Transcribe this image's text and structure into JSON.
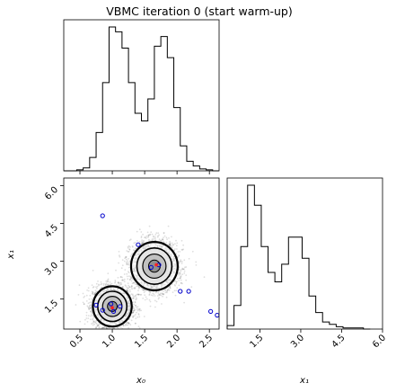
{
  "chart_data": [
    {
      "type": "histogram",
      "panel": "marginal-x0",
      "title": "VBMC iteration 0 (start warm-up)",
      "xlim": [
        0.25,
        2.65
      ],
      "bin_edges": [
        0.25,
        0.35,
        0.45,
        0.55,
        0.65,
        0.75,
        0.85,
        0.95,
        1.05,
        1.15,
        1.25,
        1.35,
        1.45,
        1.55,
        1.65,
        1.75,
        1.85,
        1.95,
        2.05,
        2.15,
        2.25,
        2.35,
        2.45,
        2.55,
        2.65
      ],
      "counts": [
        0,
        0,
        1,
        3,
        14,
        40,
        92,
        150,
        145,
        128,
        92,
        60,
        52,
        75,
        130,
        140,
        118,
        66,
        26,
        10,
        5,
        2,
        1,
        0
      ]
    },
    {
      "type": "scatter-contour",
      "panel": "joint-x0-x1",
      "xlabel": "x₀",
      "ylabel": "x₁",
      "xlim": [
        0.25,
        2.65
      ],
      "ylim": [
        0.3,
        6.3
      ],
      "xticks": [
        "0.5",
        "1.0",
        "1.5",
        "2.0",
        "2.5"
      ],
      "yticks": [
        "1.5",
        "3.0",
        "4.5",
        "6.0"
      ],
      "modes": [
        {
          "cx": 1.0,
          "cy": 1.2,
          "sx": 0.15,
          "sy": 0.4
        },
        {
          "cx": 1.65,
          "cy": 2.8,
          "sx": 0.18,
          "sy": 0.48
        }
      ],
      "training_points": [
        {
          "x": 0.85,
          "y": 4.8
        },
        {
          "x": 0.75,
          "y": 1.25
        },
        {
          "x": 0.85,
          "y": 1.05
        },
        {
          "x": 0.98,
          "y": 1.3
        },
        {
          "x": 1.02,
          "y": 1.0
        },
        {
          "x": 1.12,
          "y": 1.2
        },
        {
          "x": 1.4,
          "y": 3.65
        },
        {
          "x": 1.6,
          "y": 2.75
        },
        {
          "x": 1.72,
          "y": 2.85
        },
        {
          "x": 2.05,
          "y": 1.8
        },
        {
          "x": 2.18,
          "y": 1.8
        },
        {
          "x": 2.52,
          "y": 1.0
        },
        {
          "x": 2.62,
          "y": 0.85
        }
      ],
      "highlight_points": [
        {
          "x": 1.0,
          "y": 1.15
        },
        {
          "x": 1.68,
          "y": 2.85
        }
      ],
      "colors": {
        "training": "#0000cc",
        "highlight": "#ff2020",
        "samples": "#000000"
      }
    },
    {
      "type": "histogram",
      "panel": "marginal-x1",
      "xlabel": "x₁",
      "xlim": [
        0.3,
        6.0
      ],
      "xticks": [
        "1.5",
        "3.0",
        "4.5",
        "6.0"
      ],
      "bin_edges": [
        0.3,
        0.55,
        0.8,
        1.05,
        1.3,
        1.55,
        1.8,
        2.05,
        2.3,
        2.55,
        2.8,
        3.05,
        3.3,
        3.55,
        3.8,
        4.05,
        4.3,
        4.55,
        4.8,
        5.05,
        5.3,
        5.55
      ],
      "counts": [
        3,
        20,
        70,
        122,
        105,
        70,
        48,
        40,
        55,
        78,
        78,
        60,
        28,
        14,
        6,
        4,
        2,
        1,
        1,
        1,
        0
      ]
    }
  ]
}
